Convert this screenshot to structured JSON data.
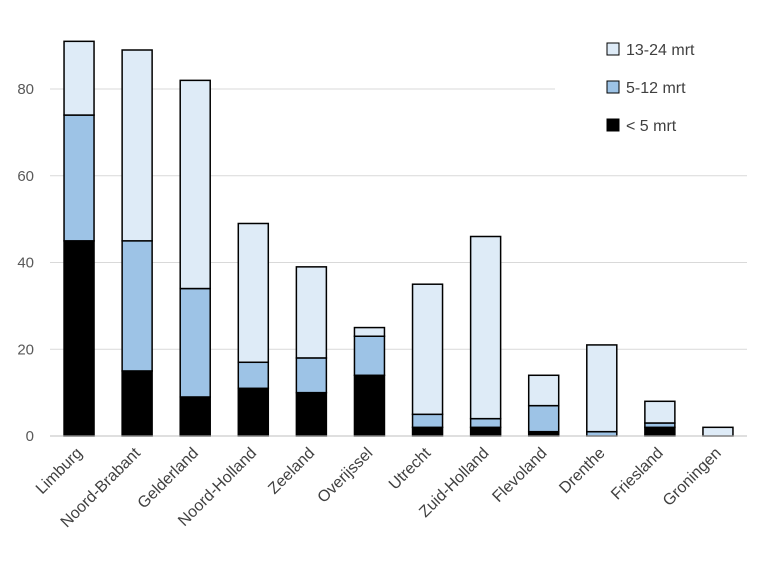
{
  "chart_data": {
    "type": "bar",
    "stacked": true,
    "categories": [
      "Limburg",
      "Noord-Brabant",
      "Gelderland",
      "Noord-Holland",
      "Zeeland",
      "Overijssel",
      "Utrecht",
      "Zuid-Holland",
      "Flevoland",
      "Drenthe",
      "Friesland",
      "Groningen"
    ],
    "series": [
      {
        "name": "< 5 mrt",
        "color": "#000000",
        "values": [
          45,
          15,
          9,
          11,
          10,
          14,
          2,
          2,
          1,
          0,
          2,
          0
        ]
      },
      {
        "name": "5-12 mrt",
        "color": "#9dc3e6",
        "values": [
          29,
          30,
          25,
          6,
          8,
          9,
          3,
          2,
          6,
          1,
          1,
          0
        ]
      },
      {
        "name": "13-24 mrt",
        "color": "#deebf7",
        "values": [
          17,
          44,
          48,
          32,
          21,
          2,
          30,
          42,
          7,
          20,
          5,
          2
        ]
      }
    ],
    "y_ticks": [
      "0",
      "20",
      "40",
      "60",
      "80"
    ],
    "ylim": [
      0,
      90
    ],
    "grid": true,
    "legend_position": "top-right"
  }
}
